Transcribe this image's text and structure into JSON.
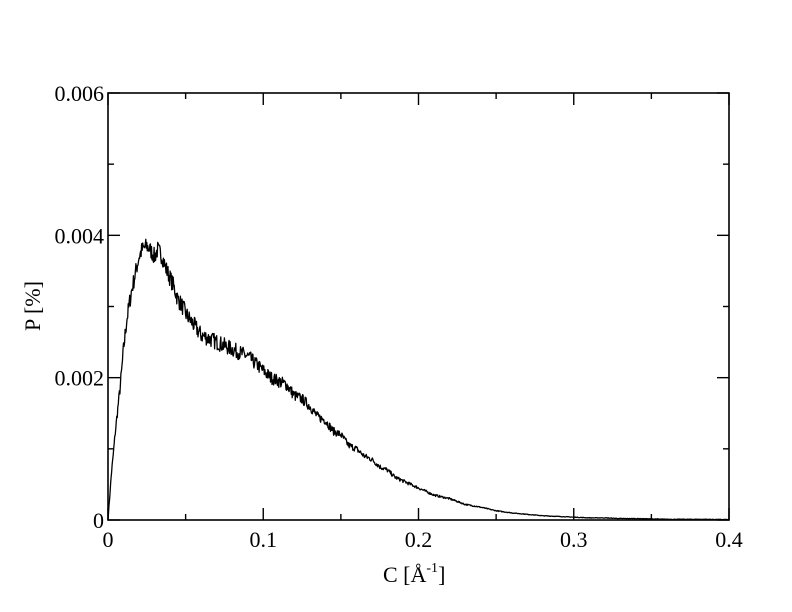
{
  "chart_data": {
    "type": "line",
    "title": "",
    "xlabel": "C [Å",
    "xlabel_superscript": "-1",
    "xlabel_suffix": "]",
    "ylabel": "P [%]",
    "xlim": [
      0,
      0.4
    ],
    "ylim": [
      0,
      0.006
    ],
    "x_major_ticks": [
      0,
      0.1,
      0.2,
      0.3,
      0.4
    ],
    "x_tick_labels": [
      "0",
      "0.1",
      "0.2",
      "0.3",
      "0.4"
    ],
    "x_minor_ticks": [
      0.05,
      0.15,
      0.25,
      0.35
    ],
    "y_major_ticks": [
      0,
      0.002,
      0.004,
      0.006
    ],
    "y_tick_labels": [
      "0",
      "0.002",
      "0.004",
      "0.006"
    ],
    "y_minor_ticks": [
      0.001,
      0.003,
      0.005
    ],
    "grid": false,
    "legend": "none",
    "series": [
      {
        "color": "#000000",
        "x": [
          0,
          0.002,
          0.005,
          0.008,
          0.01,
          0.012,
          0.015,
          0.018,
          0.02,
          0.022,
          0.025,
          0.027,
          0.03,
          0.032,
          0.035,
          0.037,
          0.04,
          0.042,
          0.045,
          0.048,
          0.05,
          0.055,
          0.06,
          0.065,
          0.07,
          0.075,
          0.08,
          0.085,
          0.09,
          0.095,
          0.1,
          0.105,
          0.11,
          0.115,
          0.12,
          0.125,
          0.13,
          0.135,
          0.14,
          0.145,
          0.15,
          0.155,
          0.16,
          0.165,
          0.17,
          0.175,
          0.18,
          0.185,
          0.19,
          0.195,
          0.2,
          0.21,
          0.22,
          0.23,
          0.24,
          0.25,
          0.26,
          0.27,
          0.28,
          0.29,
          0.3,
          0.31,
          0.32,
          0.33,
          0.34,
          0.35,
          0.36,
          0.37,
          0.38,
          0.39,
          0.4
        ],
        "y": [
          0.0,
          0.0006,
          0.0013,
          0.0019,
          0.0024,
          0.0028,
          0.0032,
          0.0035,
          0.0037,
          0.0038,
          0.00385,
          0.0038,
          0.0037,
          0.0038,
          0.0037,
          0.00355,
          0.0034,
          0.0033,
          0.0031,
          0.003,
          0.0029,
          0.00275,
          0.0026,
          0.00255,
          0.0025,
          0.00245,
          0.0024,
          0.00235,
          0.0023,
          0.0022,
          0.0021,
          0.002,
          0.00195,
          0.0019,
          0.00175,
          0.0017,
          0.0016,
          0.00145,
          0.0014,
          0.00125,
          0.0012,
          0.00105,
          0.001,
          0.0009,
          0.00085,
          0.00075,
          0.0007,
          0.0006,
          0.00055,
          0.0005,
          0.00045,
          0.00035,
          0.0003,
          0.00022,
          0.00018,
          0.00013,
          0.0001,
          8e-05,
          6e-05,
          5e-05,
          4e-05,
          3e-05,
          3e-05,
          2e-05,
          2e-05,
          1.5e-05,
          1e-05,
          1e-05,
          1e-05,
          8e-06,
          5e-06
        ]
      }
    ]
  }
}
